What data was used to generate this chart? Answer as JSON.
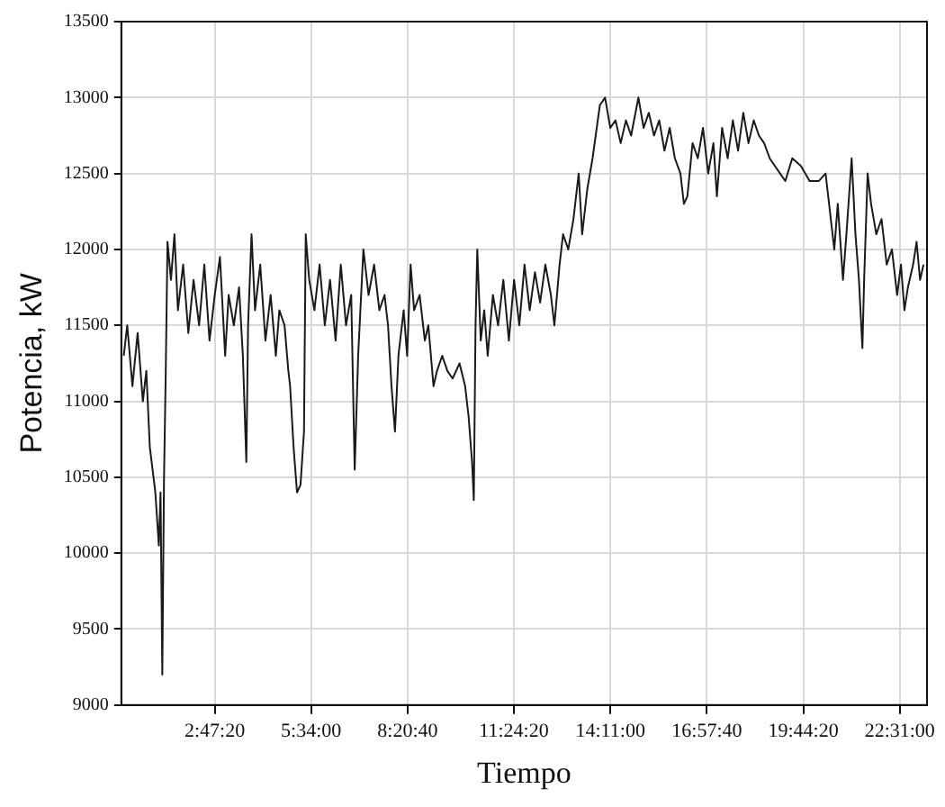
{
  "chart_data": {
    "type": "line",
    "xlabel": "Tiempo",
    "ylabel": "Potencia, kW",
    "grid": true,
    "legend": false,
    "marker": "none",
    "line_style": "solid",
    "xlim": [
      0.1,
      23.3
    ],
    "xticks": [
      {
        "value": 2.788889,
        "label": "2:47:20"
      },
      {
        "value": 5.566667,
        "label": "5:34:00"
      },
      {
        "value": 8.344444,
        "label": "8:20:40"
      },
      {
        "value": 11.405556,
        "label": "11:24:20"
      },
      {
        "value": 14.183333,
        "label": "14:11:00"
      },
      {
        "value": 16.961111,
        "label": "16:57:40"
      },
      {
        "value": 19.738889,
        "label": "19:44:20"
      },
      {
        "value": 22.516667,
        "label": "22:31:00"
      }
    ],
    "ylim": [
      9000,
      13500
    ],
    "yticks": [
      9000,
      9500,
      10000,
      10500,
      11000,
      11500,
      12000,
      12500,
      13000,
      13500
    ],
    "series": [
      {
        "color": "#1a1a1a",
        "x": [
          0.17,
          0.27,
          0.42,
          0.57,
          0.72,
          0.82,
          0.92,
          1.08,
          1.18,
          1.23,
          1.28,
          1.33,
          1.38,
          1.43,
          1.53,
          1.63,
          1.73,
          1.88,
          2.03,
          2.18,
          2.34,
          2.49,
          2.64,
          2.79,
          2.94,
          3.09,
          3.19,
          3.34,
          3.49,
          3.6,
          3.7,
          3.75,
          3.85,
          3.95,
          4.1,
          4.25,
          4.4,
          4.55,
          4.65,
          4.8,
          4.91,
          4.96,
          5.06,
          5.16,
          5.26,
          5.36,
          5.41,
          5.51,
          5.66,
          5.81,
          5.96,
          6.11,
          6.27,
          6.42,
          6.57,
          6.72,
          6.82,
          6.92,
          7.07,
          7.22,
          7.38,
          7.53,
          7.68,
          7.78,
          7.88,
          7.98,
          8.08,
          8.23,
          8.33,
          8.43,
          8.53,
          8.69,
          8.84,
          8.94,
          9.09,
          9.19,
          9.34,
          9.49,
          9.64,
          9.84,
          10.0,
          10.1,
          10.2,
          10.25,
          10.3,
          10.35,
          10.45,
          10.55,
          10.65,
          10.8,
          10.95,
          11.1,
          11.26,
          11.41,
          11.56,
          11.71,
          11.86,
          12.01,
          12.16,
          12.31,
          12.47,
          12.57,
          12.72,
          12.82,
          12.97,
          13.12,
          13.27,
          13.37,
          13.52,
          13.67,
          13.88,
          14.03,
          14.18,
          14.33,
          14.48,
          14.63,
          14.78,
          14.99,
          15.14,
          15.29,
          15.44,
          15.59,
          15.74,
          15.89,
          16.04,
          16.2,
          16.3,
          16.4,
          16.55,
          16.7,
          16.85,
          17.0,
          17.15,
          17.25,
          17.4,
          17.56,
          17.71,
          17.86,
          18.01,
          18.16,
          18.31,
          18.46,
          18.61,
          18.77,
          18.92,
          19.07,
          19.22,
          19.42,
          19.67,
          19.92,
          20.18,
          20.38,
          20.63,
          20.73,
          20.88,
          20.98,
          21.13,
          21.24,
          21.34,
          21.44,
          21.49,
          21.59,
          21.69,
          21.84,
          21.99,
          22.14,
          22.29,
          22.44,
          22.55,
          22.65,
          22.75,
          22.9,
          23.0,
          23.1,
          23.2
        ],
        "values": [
          11300,
          11500,
          11100,
          11450,
          11000,
          11200,
          10700,
          10400,
          10050,
          10400,
          9200,
          10500,
          11200,
          12050,
          11800,
          12100,
          11600,
          11900,
          11450,
          11800,
          11500,
          11900,
          11400,
          11700,
          11950,
          11300,
          11700,
          11500,
          11750,
          11300,
          10600,
          11500,
          12100,
          11600,
          11900,
          11400,
          11700,
          11300,
          11600,
          11500,
          11200,
          11100,
          10700,
          10400,
          10450,
          10800,
          12100,
          11800,
          11600,
          11900,
          11500,
          11800,
          11400,
          11900,
          11500,
          11700,
          10550,
          11300,
          12000,
          11700,
          11900,
          11600,
          11700,
          11500,
          11100,
          10800,
          11300,
          11600,
          11300,
          11900,
          11600,
          11700,
          11400,
          11500,
          11100,
          11200,
          11300,
          11200,
          11150,
          11250,
          11100,
          10900,
          10600,
          10350,
          11500,
          12000,
          11400,
          11600,
          11300,
          11700,
          11500,
          11800,
          11400,
          11800,
          11500,
          11900,
          11600,
          11850,
          11650,
          11900,
          11700,
          11500,
          11900,
          12100,
          12000,
          12200,
          12500,
          12100,
          12400,
          12600,
          12950,
          13000,
          12800,
          12850,
          12700,
          12850,
          12750,
          13000,
          12800,
          12900,
          12750,
          12850,
          12650,
          12800,
          12600,
          12500,
          12300,
          12350,
          12700,
          12600,
          12800,
          12500,
          12700,
          12350,
          12800,
          12600,
          12850,
          12650,
          12900,
          12700,
          12850,
          12750,
          12700,
          12600,
          12550,
          12500,
          12450,
          12600,
          12550,
          12450,
          12450,
          12500,
          12000,
          12300,
          11800,
          12100,
          12600,
          12100,
          11800,
          11350,
          11800,
          12500,
          12300,
          12100,
          12200,
          11900,
          12000,
          11700,
          11900,
          11600,
          11750,
          11900,
          12050,
          11800,
          11900
        ]
      }
    ]
  }
}
